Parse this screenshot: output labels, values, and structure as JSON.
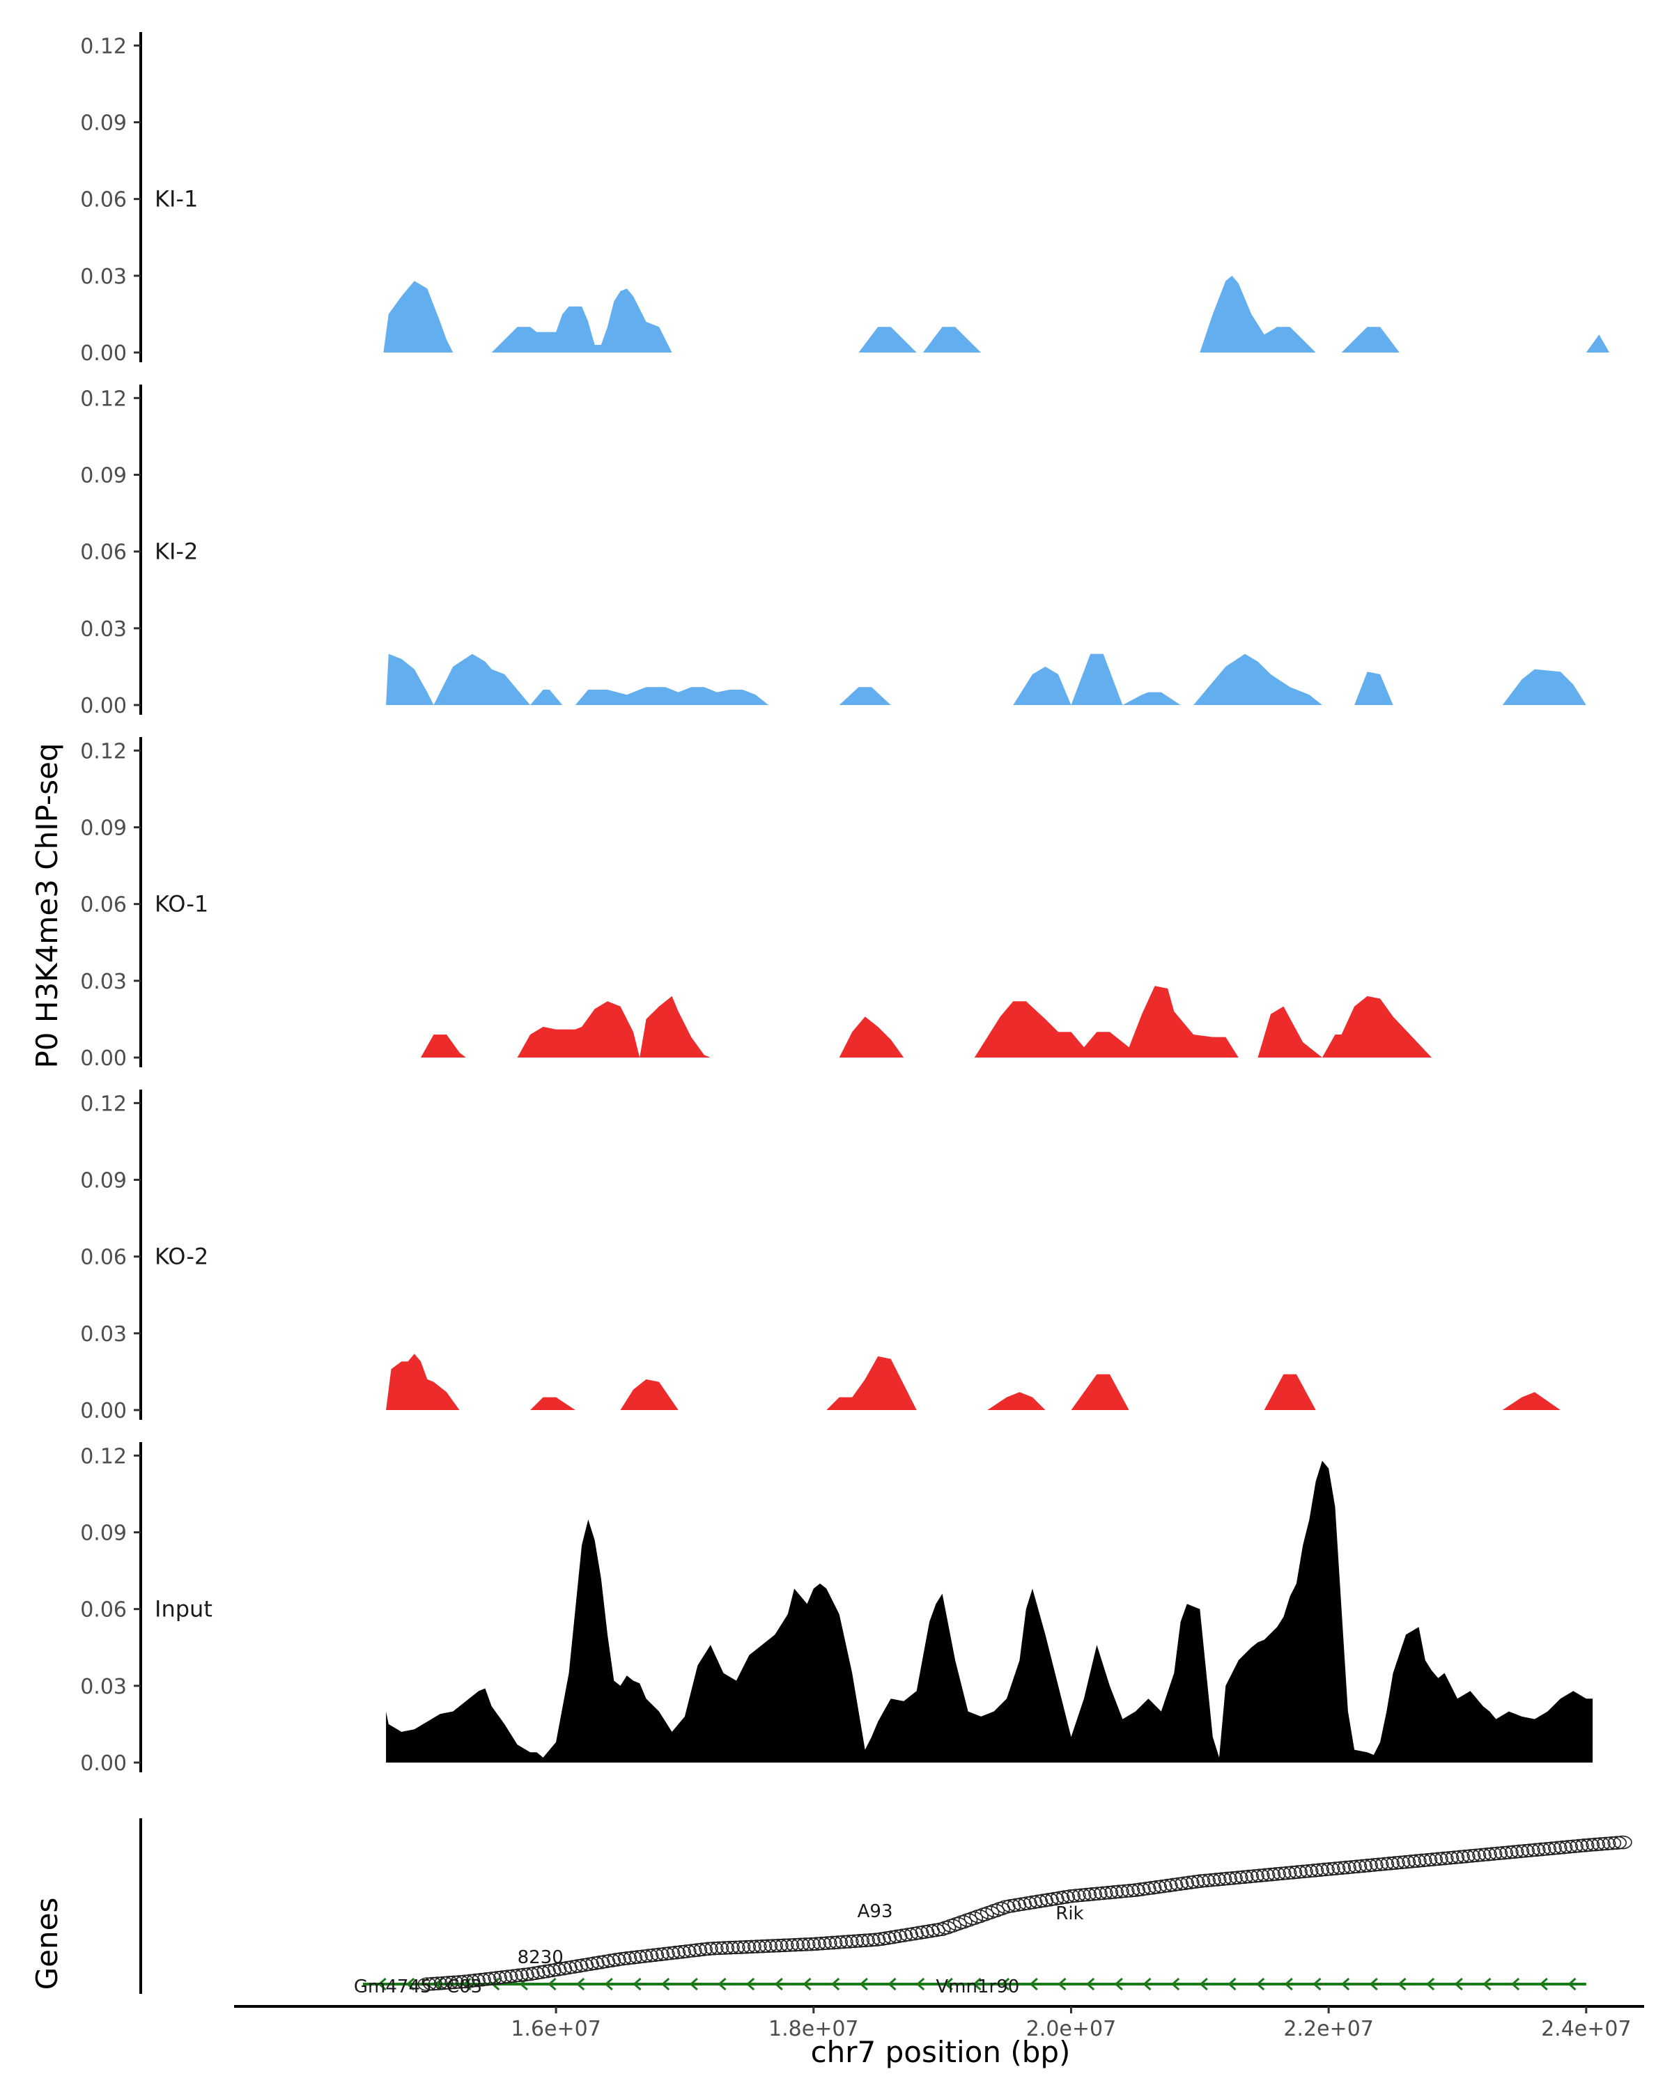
{
  "chart_data": {
    "type": "area",
    "ylabel": "P0 H3K4me3 ChIP-seq",
    "xlabel": "chr7 position (bp)",
    "xlim": [
      13500000,
      24450000
    ],
    "ylim": [
      0,
      0.122
    ],
    "yticks": [
      0.0,
      0.03,
      0.06,
      0.09,
      0.12
    ],
    "ytick_labels": [
      "0.00",
      "0.03",
      "0.06",
      "0.09",
      "0.12"
    ],
    "xticks": [
      16000000,
      18000000,
      20000000,
      22000000,
      24000000
    ],
    "xtick_labels": [
      "1.6e+07",
      "1.8e+07",
      "2.0e+07",
      "2.2e+07",
      "2.4e+07"
    ],
    "series": [
      {
        "name": "KI-1",
        "color": "#62aeee",
        "x": [
          14660000,
          14700000,
          14800000,
          14850000,
          14900000,
          15000000,
          15100000,
          15150000,
          15200000,
          15500000,
          15700000,
          15800000,
          15850000,
          16000000,
          16050000,
          16100000,
          16200000,
          16250000,
          16300000,
          16350000,
          16400000,
          16450000,
          16500000,
          16550000,
          16600000,
          16700000,
          16800000,
          16900000,
          17000000,
          17100000,
          17200000,
          18350000,
          18500000,
          18600000,
          18800000,
          18850000,
          19000000,
          19100000,
          19300000,
          21000000,
          21100000,
          21200000,
          21250000,
          21300000,
          21400000,
          21500000,
          21600000,
          21700000,
          21900000,
          22100000,
          22300000,
          22400000,
          22550000,
          24000000,
          24100000,
          24180000
        ],
        "values": [
          0,
          0.015,
          0.022,
          0.025,
          0.028,
          0.025,
          0.012,
          0.005,
          0,
          0,
          0.01,
          0.01,
          0.008,
          0.008,
          0.015,
          0.018,
          0.018,
          0.012,
          0.003,
          0.003,
          0.01,
          0.02,
          0.024,
          0.025,
          0.022,
          0.012,
          0.01,
          0,
          0,
          0,
          0,
          0,
          0.01,
          0.01,
          0,
          0,
          0.01,
          0.01,
          0,
          0,
          0.015,
          0.028,
          0.03,
          0.027,
          0.015,
          0.007,
          0.01,
          0.01,
          0,
          0,
          0.01,
          0.01,
          0,
          0,
          0.007,
          0
        ],
        "visible_values": []
      },
      {
        "name": "KI-2",
        "color": "#62aeee",
        "x": [
          14680000,
          14700000,
          14800000,
          14900000,
          15000000,
          15050000,
          15200000,
          15350000,
          15450000,
          15500000,
          15600000,
          15700000,
          15800000,
          15900000,
          15950000,
          16050000,
          16150000,
          16250000,
          16400000,
          16550000,
          16700000,
          16850000,
          16950000,
          17050000,
          17150000,
          17250000,
          17350000,
          17450000,
          17550000,
          17650000,
          17750000,
          17850000,
          18200000,
          18350000,
          18450000,
          18600000,
          19550000,
          19700000,
          19800000,
          19900000,
          20000000,
          20150000,
          20250000,
          20400000,
          20550000,
          20600000,
          20700000,
          20850000,
          20950000,
          21200000,
          21350000,
          21450000,
          21550000,
          21700000,
          21850000,
          21950000,
          22200000,
          22300000,
          22400000,
          22500000,
          22650000,
          23350000,
          23500000,
          23600000,
          23800000,
          23900000,
          24000000,
          24050000
        ],
        "values": [
          0,
          0.02,
          0.018,
          0.014,
          0.005,
          0,
          0.015,
          0.02,
          0.017,
          0.014,
          0.012,
          0.006,
          0,
          0.006,
          0.006,
          0,
          0,
          0.006,
          0.006,
          0.004,
          0.007,
          0.007,
          0.005,
          0.007,
          0.007,
          0.005,
          0.006,
          0.006,
          0.004,
          0,
          0,
          0,
          0,
          0.007,
          0.007,
          0,
          0,
          0.012,
          0.015,
          0.012,
          0,
          0.02,
          0.02,
          0,
          0.004,
          0.005,
          0.005,
          0,
          0,
          0.015,
          0.02,
          0.017,
          0.012,
          0.007,
          0.004,
          0,
          0,
          0.013,
          0.012,
          0,
          0,
          0,
          0.01,
          0.014,
          0.013,
          0.008,
          0,
          0
        ],
        "visible_values": []
      },
      {
        "name": "KO-1",
        "color": "#ee2b2b",
        "x": [
          14950000,
          15050000,
          15150000,
          15250000,
          15300000,
          15700000,
          15800000,
          15900000,
          16000000,
          16100000,
          16150000,
          16200000,
          16300000,
          16400000,
          16500000,
          16600000,
          16650000,
          16700000,
          16800000,
          16900000,
          16950000,
          17050000,
          17150000,
          17200000,
          18200000,
          18300000,
          18400000,
          18500000,
          18600000,
          18700000,
          18800000,
          19250000,
          19450000,
          19550000,
          19650000,
          19800000,
          19900000,
          20000000,
          20100000,
          20200000,
          20300000,
          20450000,
          20550000,
          20650000,
          20750000,
          20800000,
          20950000,
          21100000,
          21200000,
          21300000,
          21450000,
          21550000,
          21650000,
          21800000,
          21950000,
          22050000,
          22100000,
          22200000,
          22300000,
          22400000,
          22500000,
          22650000,
          22800000
        ],
        "values": [
          0,
          0.009,
          0.009,
          0.002,
          0,
          0,
          0.009,
          0.012,
          0.011,
          0.011,
          0.011,
          0.012,
          0.019,
          0.022,
          0.02,
          0.01,
          0,
          0.015,
          0.02,
          0.024,
          0.018,
          0.008,
          0.001,
          0,
          0,
          0.01,
          0.016,
          0.012,
          0.007,
          0,
          0,
          0,
          0.016,
          0.022,
          0.022,
          0.015,
          0.01,
          0.01,
          0.004,
          0.01,
          0.01,
          0.004,
          0.017,
          0.028,
          0.027,
          0.018,
          0.009,
          0.008,
          0.008,
          0,
          0,
          0.017,
          0.02,
          0.006,
          0,
          0.009,
          0.009,
          0.02,
          0.024,
          0.023,
          0.016,
          0.008,
          0
        ],
        "visible_values": []
      },
      {
        "name": "KO-2",
        "color": "#ee2b2b",
        "x": [
          14680000,
          14720000,
          14800000,
          14850000,
          14900000,
          14950000,
          15000000,
          15050000,
          15150000,
          15250000,
          15800000,
          15900000,
          16000000,
          16150000,
          16500000,
          16600000,
          16700000,
          16800000,
          16950000,
          18100000,
          18200000,
          18300000,
          18400000,
          18500000,
          18600000,
          18700000,
          18800000,
          19350000,
          19500000,
          19600000,
          19700000,
          19800000,
          20000000,
          20200000,
          20300000,
          20450000,
          21500000,
          21650000,
          21750000,
          21900000,
          23350000,
          23500000,
          23600000,
          23800000
        ],
        "values": [
          0,
          0.016,
          0.019,
          0.019,
          0.022,
          0.019,
          0.012,
          0.011,
          0.007,
          0,
          0,
          0.005,
          0.005,
          0,
          0,
          0.008,
          0.012,
          0.011,
          0,
          0,
          0.005,
          0.005,
          0.012,
          0.021,
          0.02,
          0.01,
          0,
          0,
          0.005,
          0.007,
          0.005,
          0,
          0,
          0.014,
          0.014,
          0,
          0,
          0.014,
          0.014,
          0,
          0,
          0.005,
          0.007,
          0
        ],
        "visible_values": []
      },
      {
        "name": "Input",
        "color": "#000000",
        "x": [
          14680000,
          14700000,
          14800000,
          14900000,
          15000000,
          15100000,
          15200000,
          15300000,
          15400000,
          15450000,
          15500000,
          15600000,
          15700000,
          15800000,
          15850000,
          15900000,
          16000000,
          16100000,
          16200000,
          16250000,
          16300000,
          16350000,
          16400000,
          16450000,
          16500000,
          16550000,
          16600000,
          16650000,
          16700000,
          16800000,
          16900000,
          17000000,
          17100000,
          17200000,
          17300000,
          17400000,
          17500000,
          17600000,
          17700000,
          17800000,
          17850000,
          17900000,
          17950000,
          18000000,
          18050000,
          18100000,
          18200000,
          18300000,
          18400000,
          18450000,
          18500000,
          18600000,
          18700000,
          18800000,
          18900000,
          18950000,
          19000000,
          19100000,
          19200000,
          19300000,
          19400000,
          19500000,
          19600000,
          19650000,
          19700000,
          19800000,
          19900000,
          20000000,
          20100000,
          20200000,
          20300000,
          20400000,
          20500000,
          20600000,
          20700000,
          20800000,
          20850000,
          20900000,
          21000000,
          21100000,
          21150000,
          21200000,
          21300000,
          21400000,
          21450000,
          21500000,
          21600000,
          21650000,
          21700000,
          21750000,
          21800000,
          21850000,
          21900000,
          21950000,
          22000000,
          22050000,
          22100000,
          22150000,
          22200000,
          22300000,
          22350000,
          22400000,
          22450000,
          22500000,
          22600000,
          22700000,
          22750000,
          22800000,
          22850000,
          22900000,
          23000000,
          23100000,
          23200000,
          23250000,
          23300000,
          23400000,
          23500000,
          23600000,
          23700000,
          23800000,
          23900000,
          24000000,
          24050000
        ],
        "values": [
          0.02,
          0.015,
          0.012,
          0.013,
          0.016,
          0.019,
          0.02,
          0.024,
          0.028,
          0.029,
          0.022,
          0.015,
          0.007,
          0.004,
          0.004,
          0.002,
          0.008,
          0.035,
          0.085,
          0.095,
          0.087,
          0.072,
          0.05,
          0.032,
          0.03,
          0.034,
          0.032,
          0.031,
          0.025,
          0.02,
          0.012,
          0.018,
          0.038,
          0.046,
          0.035,
          0.032,
          0.042,
          0.046,
          0.05,
          0.058,
          0.068,
          0.065,
          0.062,
          0.068,
          0.07,
          0.068,
          0.058,
          0.035,
          0.005,
          0.01,
          0.016,
          0.025,
          0.024,
          0.028,
          0.055,
          0.062,
          0.066,
          0.04,
          0.02,
          0.018,
          0.02,
          0.025,
          0.04,
          0.06,
          0.068,
          0.05,
          0.03,
          0.01,
          0.025,
          0.046,
          0.03,
          0.017,
          0.02,
          0.025,
          0.02,
          0.035,
          0.055,
          0.062,
          0.06,
          0.01,
          0.002,
          0.03,
          0.04,
          0.045,
          0.047,
          0.048,
          0.053,
          0.057,
          0.065,
          0.07,
          0.085,
          0.095,
          0.11,
          0.118,
          0.115,
          0.1,
          0.06,
          0.02,
          0.005,
          0.004,
          0.003,
          0.008,
          0.02,
          0.035,
          0.05,
          0.053,
          0.04,
          0.036,
          0.033,
          0.035,
          0.025,
          0.028,
          0.022,
          0.02,
          0.017,
          0.02,
          0.018,
          0.017,
          0.02,
          0.025,
          0.028,
          0.025,
          0.025
        ],
        "visible_values": []
      }
    ],
    "genes_track": {
      "label": "Genes",
      "line_color": "#1a7a1a",
      "line_start": 14500000,
      "line_end": 24000000,
      "label_points": [
        [
          14800000,
          0.02
        ],
        [
          15300000,
          0.05
        ],
        [
          15800000,
          0.1
        ],
        [
          16500000,
          0.2
        ],
        [
          17200000,
          0.27
        ],
        [
          18000000,
          0.3
        ],
        [
          18500000,
          0.33
        ],
        [
          19000000,
          0.4
        ],
        [
          19500000,
          0.55
        ],
        [
          20000000,
          0.62
        ],
        [
          20500000,
          0.66
        ],
        [
          21000000,
          0.72
        ],
        [
          21500000,
          0.76
        ],
        [
          22000000,
          0.8
        ],
        [
          22500000,
          0.84
        ],
        [
          23000000,
          0.88
        ],
        [
          23500000,
          0.92
        ],
        [
          24000000,
          0.96
        ],
        [
          24300000,
          0.98
        ]
      ],
      "visible_labels": [
        "Gm4745",
        "C03",
        "A93",
        "8230",
        "Vmn1r90",
        "Rik"
      ]
    }
  }
}
